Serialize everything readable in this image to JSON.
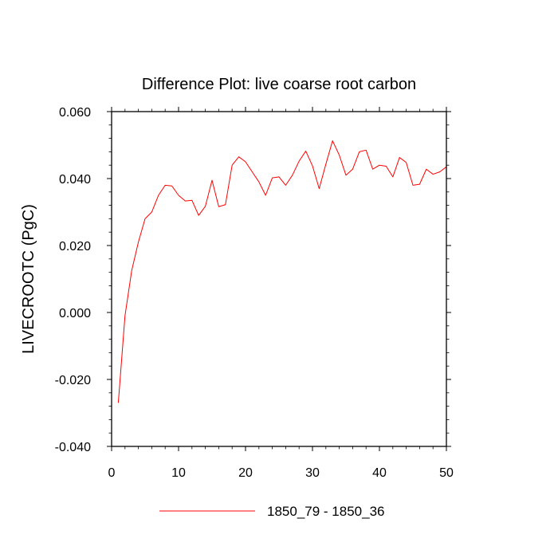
{
  "chart_data": {
    "type": "line",
    "title": "Difference Plot: live coarse root carbon",
    "xlabel": "",
    "ylabel": "LIVECROOTC  (PgC)",
    "xlim": [
      0,
      50
    ],
    "ylim": [
      -0.04,
      0.06
    ],
    "x_ticks": [
      0,
      10,
      20,
      30,
      40,
      50
    ],
    "x_tick_labels": [
      "0",
      "10",
      "20",
      "30",
      "40",
      "50"
    ],
    "y_ticks": [
      -0.04,
      -0.02,
      0.0,
      0.02,
      0.04,
      0.06
    ],
    "y_tick_labels": [
      "-0.040",
      "-0.020",
      "0.000",
      "0.020",
      "0.040",
      "0.060"
    ],
    "legend_position": "bottom-center",
    "grid": false,
    "series": [
      {
        "name": "1850_79 - 1850_36",
        "color": "#ff0000",
        "x": [
          1,
          2,
          3,
          4,
          5,
          6,
          7,
          8,
          9,
          10,
          11,
          12,
          13,
          14,
          15,
          16,
          17,
          18,
          19,
          20,
          21,
          22,
          23,
          24,
          25,
          26,
          27,
          28,
          29,
          30,
          31,
          32,
          33,
          34,
          35,
          36,
          37,
          38,
          39,
          40,
          41,
          42,
          43,
          44,
          45,
          46,
          47,
          48,
          49,
          50
        ],
        "values": [
          -0.027,
          -0.001,
          0.0125,
          0.021,
          0.028,
          0.03,
          0.035,
          0.038,
          0.0378,
          0.035,
          0.0333,
          0.0335,
          0.029,
          0.0317,
          0.0395,
          0.0316,
          0.0322,
          0.044,
          0.0465,
          0.045,
          0.042,
          0.039,
          0.035,
          0.0402,
          0.0405,
          0.038,
          0.041,
          0.0452,
          0.0482,
          0.0438,
          0.037,
          0.0443,
          0.0513,
          0.047,
          0.041,
          0.0428,
          0.048,
          0.0485,
          0.0428,
          0.044,
          0.0437,
          0.0405,
          0.0463,
          0.0448,
          0.038,
          0.0383,
          0.0428,
          0.0413,
          0.042,
          0.0435
        ]
      }
    ]
  }
}
